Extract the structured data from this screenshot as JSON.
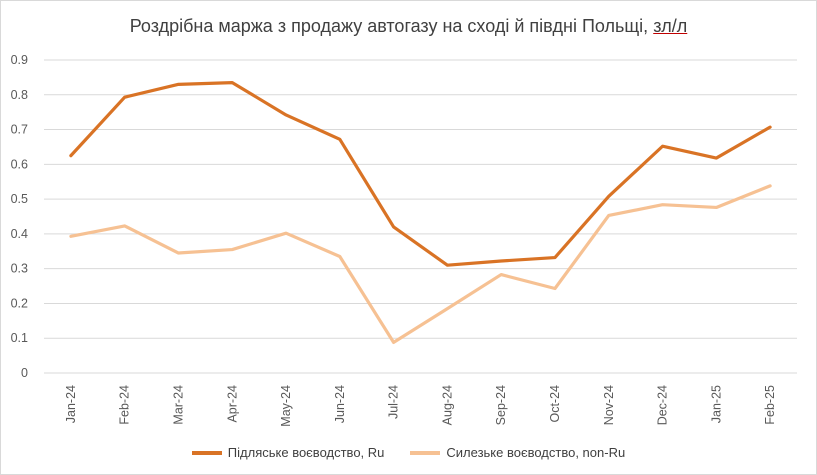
{
  "title_main": "Роздрібна маржа з продажу автогазу на сході й півдні Польщі,",
  "title_unit": "зл/л",
  "chart_data": {
    "type": "line",
    "title": "Роздрібна маржа з продажу автогазу на сході й півдні Польщі, зл/л",
    "categories": [
      "Jan-24",
      "Feb-24",
      "Mar-24",
      "Apr-24",
      "May-24",
      "Jun-24",
      "Jul-24",
      "Aug-24",
      "Sep-24",
      "Oct-24",
      "Nov-24",
      "Dec-24",
      "Jan-25",
      "Feb-25"
    ],
    "y_ticks": [
      "0",
      "0.1",
      "0.2",
      "0.3",
      "0.4",
      "0.5",
      "0.6",
      "0.7",
      "0.8",
      "0.9"
    ],
    "ylim": [
      0,
      0.9
    ],
    "grid": true,
    "legend_position": "bottom",
    "series": [
      {
        "name": "Підляське воєводство, Ru",
        "color": "#d97325",
        "values": [
          0.625,
          0.793,
          0.83,
          0.835,
          0.742,
          0.672,
          0.42,
          0.31,
          0.322,
          0.332,
          0.508,
          0.652,
          0.618,
          0.707
        ]
      },
      {
        "name": "Силезьке воєводство, non-Ru",
        "color": "#f6c193",
        "values": [
          0.393,
          0.423,
          0.345,
          0.355,
          0.402,
          0.335,
          0.088,
          0.185,
          0.283,
          0.243,
          0.453,
          0.484,
          0.476,
          0.538
        ]
      }
    ]
  }
}
